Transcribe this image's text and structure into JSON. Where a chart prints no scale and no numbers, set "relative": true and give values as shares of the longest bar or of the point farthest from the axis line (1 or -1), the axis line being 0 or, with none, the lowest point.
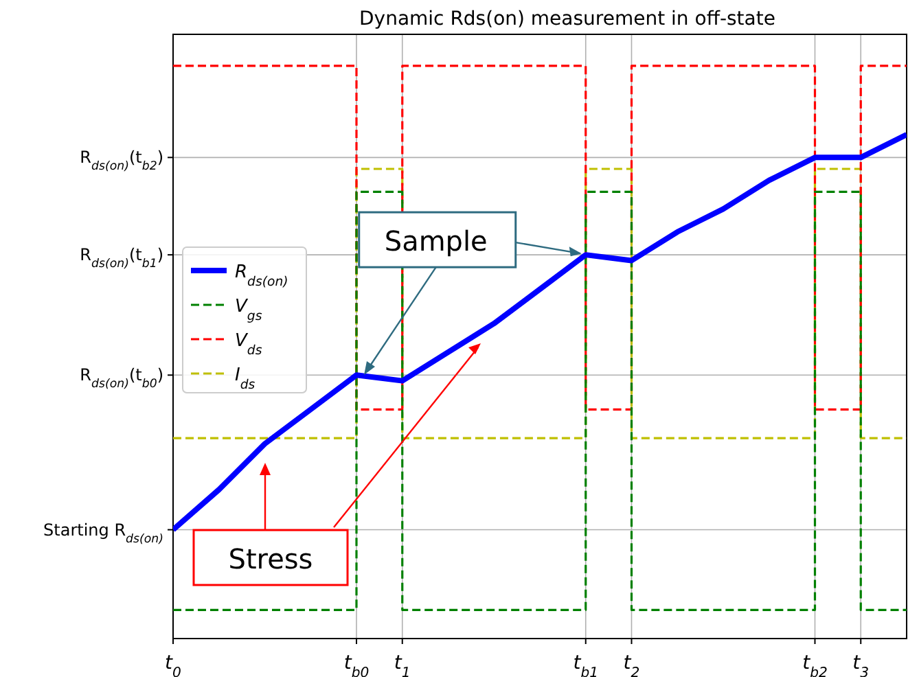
{
  "chart_data": {
    "type": "line",
    "title": "Dynamic Rds(on) measurement in off-state",
    "relative": true,
    "categories": [
      "t$_{0}$",
      null,
      null,
      null,
      "t$_{b0}$",
      "t$_{1}$",
      null,
      null,
      null,
      "t$_{b1}$",
      "t$_{2}$",
      null,
      null,
      null,
      "t$_{b2}$",
      "t$_{3}$",
      null
    ],
    "grid": "x",
    "legend": "left",
    "ref_lines": [
      {
        "axis": "y",
        "value": 0.19,
        "label": "Starting R$_{ds(on)}$"
      },
      {
        "axis": "y",
        "value": 0.46,
        "label": "R$_{ds(on)}$(t$_{b0}$)"
      },
      {
        "axis": "y",
        "value": 0.67,
        "label": "R$_{ds(on)}$(t$_{b1}$)"
      },
      {
        "axis": "y",
        "value": 0.84,
        "label": "R$_{ds(on)}$(t$_{b2}$)"
      }
    ],
    "series": [
      {
        "name": "R$_{ds(on)}$",
        "color": "#0000ff",
        "line_style": "solid",
        "values": [
          0.19,
          0.26,
          0.34,
          0.4,
          0.46,
          0.45,
          0.5,
          0.55,
          0.61,
          0.67,
          0.66,
          0.71,
          0.75,
          0.8,
          0.84,
          0.84,
          0.88
        ]
      },
      {
        "name": "V$_{gs}$",
        "type": "step",
        "color": "#008000",
        "line_style": "dashed",
        "values": [
          0.05,
          0.05,
          0.05,
          0.05,
          0.78,
          0.05,
          0.05,
          0.05,
          0.05,
          0.78,
          0.05,
          0.05,
          0.05,
          0.05,
          0.78,
          0.05,
          0.05
        ]
      },
      {
        "name": "V$_{ds}$",
        "type": "step",
        "color": "#ff0000",
        "line_style": "dashed",
        "values": [
          1,
          1,
          1,
          1,
          0.4,
          1,
          1,
          1,
          1,
          0.4,
          1,
          1,
          1,
          1,
          0.4,
          1,
          1
        ]
      },
      {
        "name": "I$_{ds}$",
        "type": "step",
        "color": "#bfbf00",
        "line_style": "dashed",
        "values": [
          0.35,
          0.35,
          0.35,
          0.35,
          0.82,
          0.35,
          0.35,
          0.35,
          0.35,
          0.82,
          0.35,
          0.35,
          0.35,
          0.35,
          0.82,
          0.35,
          0.35
        ]
      }
    ],
    "annotations": [
      {
        "text": "Sample",
        "x": "t$_{b1}$",
        "y": 0.67
      },
      "Stress"
    ]
  }
}
